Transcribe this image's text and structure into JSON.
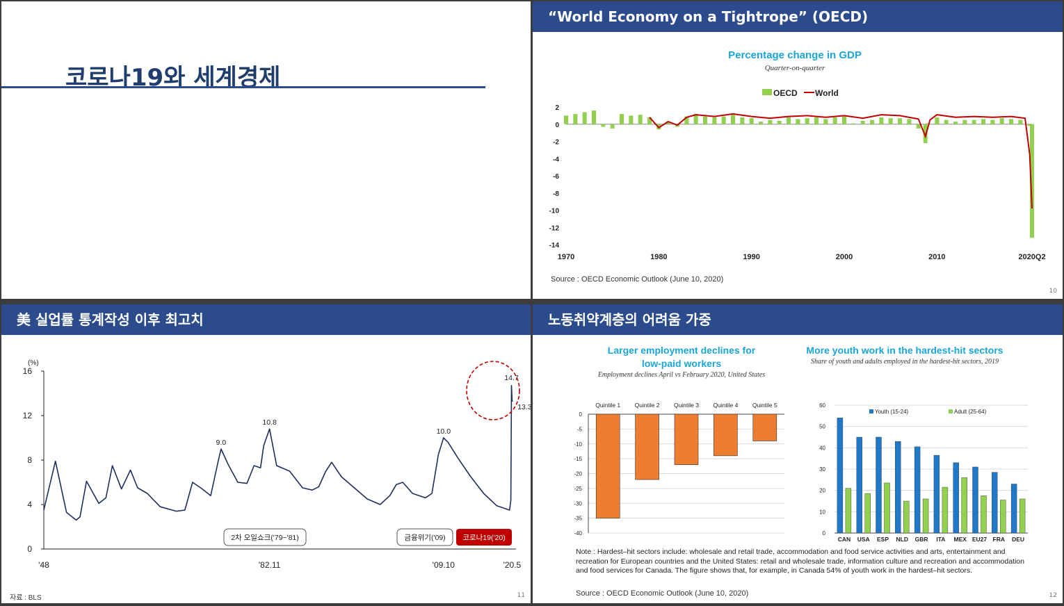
{
  "slide1": {
    "title": "코로나19와 세계경제"
  },
  "slide2": {
    "header": "“World Economy on a Tightrope” (OECD)",
    "chart_title": "Percentage change in GDP",
    "chart_subtitle": "Quarter-on-quarter",
    "source": "Source : OECD Economic Outlook (June 10, 2020)",
    "page": "10",
    "chart_data": {
      "type": "bar",
      "title": "Percentage change in GDP",
      "subtitle": "Quarter-on-quarter",
      "legend": [
        "OECD",
        "World"
      ],
      "legend_position": "top",
      "ylim": [
        -14,
        2
      ],
      "yticks": [
        "2",
        "0",
        "-2",
        "-4",
        "-6",
        "-8",
        "-10",
        "-12",
        "-14"
      ],
      "xticks": [
        "1970",
        "1980",
        "1990",
        "2000",
        "2010",
        "2020Q2"
      ],
      "series": [
        {
          "name": "OECD",
          "kind": "bar",
          "color": "#92d050",
          "x": [
            1970,
            1971,
            1972,
            1973,
            1974,
            1975,
            1976,
            1977,
            1978,
            1979,
            1980,
            1981,
            1982,
            1983,
            1984,
            1985,
            1986,
            1987,
            1988,
            1989,
            1990,
            1991,
            1992,
            1993,
            1994,
            1995,
            1996,
            1997,
            1998,
            1999,
            2000,
            2001,
            2002,
            2003,
            2004,
            2005,
            2006,
            2007,
            2008,
            2008.75,
            2009,
            2010,
            2011,
            2012,
            2013,
            2014,
            2015,
            2016,
            2017,
            2018,
            2019,
            2020,
            2020.25
          ],
          "values": [
            1.0,
            1.2,
            1.4,
            1.6,
            -0.3,
            -0.5,
            1.2,
            1.0,
            1.1,
            0.8,
            -0.6,
            0.3,
            -0.3,
            0.9,
            1.2,
            0.9,
            0.8,
            0.9,
            1.1,
            0.8,
            0.7,
            0.3,
            0.5,
            0.4,
            0.8,
            0.6,
            0.7,
            0.8,
            0.6,
            0.8,
            0.9,
            0.1,
            0.4,
            0.5,
            0.8,
            0.7,
            0.7,
            0.6,
            -0.5,
            -2.2,
            0.1,
            0.8,
            0.5,
            0.3,
            0.5,
            0.5,
            0.6,
            0.5,
            0.7,
            0.6,
            0.5,
            -0.2,
            -13.2
          ]
        },
        {
          "name": "World",
          "kind": "line",
          "color": "#c00000",
          "x": [
            1979,
            1980,
            1981,
            1982,
            1983,
            1984,
            1986,
            1988,
            1990,
            1992,
            1994,
            1996,
            1998,
            2000,
            2002,
            2004,
            2006,
            2008,
            2008.75,
            2009.25,
            2010,
            2012,
            2014,
            2016,
            2018,
            2019.5,
            2020,
            2020.25
          ],
          "values": [
            0.8,
            -0.4,
            0.3,
            -0.1,
            0.8,
            1.1,
            0.9,
            1.2,
            0.9,
            0.7,
            0.9,
            1.0,
            0.8,
            1.0,
            0.7,
            1.1,
            1.0,
            0.6,
            -1.4,
            0.5,
            1.1,
            0.8,
            0.9,
            0.8,
            0.9,
            0.7,
            -3.5,
            -9.8
          ]
        }
      ]
    }
  },
  "slide3": {
    "header": "美 실업률 통계작성 이후 최고치",
    "source": "자료 : BLS",
    "page": "11",
    "chart_data": {
      "type": "line",
      "unit": "(%)",
      "ylim": [
        0,
        16
      ],
      "yticks": [
        "16",
        "12",
        "8",
        "4",
        "0"
      ],
      "xticks": [
        "'48",
        "'82.11",
        "'09.10",
        "'20.5"
      ],
      "series": [
        {
          "color": "#1f2d5c",
          "x": [
            1948.0,
            1949.8,
            1951.5,
            1953.0,
            1953.6,
            1954.6,
            1956.5,
            1957.6,
            1958.6,
            1960.0,
            1961.4,
            1962.5,
            1964.0,
            1966.0,
            1968.5,
            1969.8,
            1971.0,
            1972.5,
            1973.8,
            1975.0,
            1975.4,
            1976.5,
            1978.0,
            1979.4,
            1980.5,
            1981.5,
            1982.0,
            1982.9,
            1984.0,
            1986.0,
            1988.0,
            1989.5,
            1990.5,
            1991.6,
            1992.5,
            1994.0,
            1996.0,
            1998.0,
            2000.0,
            2001.5,
            2002.5,
            2003.5,
            2005.0,
            2007.0,
            2008.0,
            2009.0,
            2009.8,
            2010.5,
            2012.0,
            2014.0,
            2016.0,
            2018.0,
            2019.5,
            2020.0,
            2020.2,
            2020.3,
            2020.4,
            2020.5
          ],
          "values": [
            3.5,
            7.9,
            3.3,
            2.6,
            2.9,
            6.1,
            4.1,
            4.6,
            7.5,
            5.4,
            7.1,
            5.5,
            5.0,
            3.8,
            3.4,
            3.5,
            6.0,
            5.4,
            4.8,
            8.0,
            9.0,
            7.6,
            6.0,
            5.9,
            7.5,
            7.3,
            9.3,
            10.8,
            7.5,
            7.0,
            5.5,
            5.3,
            5.6,
            7.0,
            7.8,
            6.5,
            5.5,
            4.5,
            4.0,
            4.8,
            5.8,
            6.0,
            5.0,
            4.6,
            5.0,
            8.5,
            10.0,
            9.6,
            8.2,
            6.5,
            5.0,
            3.9,
            3.6,
            3.5,
            4.4,
            14.7,
            13.3,
            13.3
          ]
        }
      ],
      "annotations": [
        "9.0",
        "10.8",
        "10.0",
        "14.7",
        "13.3"
      ],
      "labels": {
        "oil": "2차 오일쇼크('79~'81)",
        "fin": "금융위기('09)",
        "covid": "코로나19('20)"
      }
    }
  },
  "slide4": {
    "header": "노동취약계층의 어려움 가중",
    "left_title_1": "Larger employment declines for",
    "left_title_2": "low-paid workers",
    "left_subtitle": "Employment declines April vs February 2020, United States",
    "right_title": "More youth work in the hardest-hit sectors",
    "right_subtitle": "Share of youth and adults employed in the hardest-hit sectors, 2019",
    "note": "Note : Hardest–hit sectors include: wholesale and retail trade, accommodation and food service activities and arts, entertainment and recreation for European  countries and the United States: retail and wholesale trade, information culture and recreation and accommodation and food services for Canada. The figure shows that, for example, in Canada 54% of youth work in the hardest–hit sectors.",
    "source": "Source : OECD Economic Outlook (June 10, 2020)",
    "page": "12",
    "chart_data": [
      {
        "type": "bar",
        "categories": [
          "Quintile 1",
          "Quintile 2",
          "Quintile 3",
          "Quintile 4",
          "Quintile 5"
        ],
        "values": [
          -35,
          -22,
          -17,
          -14,
          -9
        ],
        "ylim": [
          -40,
          0
        ],
        "yticks": [
          "0",
          "-5",
          "-10",
          "-15",
          "-20",
          "-25",
          "-30",
          "-35",
          "-40"
        ],
        "color": "#ed7d31"
      },
      {
        "type": "bar",
        "categories": [
          "CAN",
          "USA",
          "ESP",
          "NLD",
          "GBR",
          "ITA",
          "MEX",
          "EU27",
          "FRA",
          "DEU"
        ],
        "ylim": [
          0,
          60
        ],
        "yticks": [
          "60",
          "50",
          "40",
          "30",
          "20",
          "10",
          "0"
        ],
        "legend_position": "top",
        "series": [
          {
            "name": "Youth (15-24)",
            "color": "#1f78c8",
            "values": [
              54,
              45,
              45,
              43,
              40.5,
              36.5,
              33,
              31,
              28.5,
              23
            ]
          },
          {
            "name": "Adult (25-64)",
            "color": "#92d050",
            "values": [
              21,
              18.5,
              23.5,
              15,
              16,
              21.5,
              26,
              17.5,
              15.5,
              16
            ]
          }
        ]
      }
    ]
  }
}
